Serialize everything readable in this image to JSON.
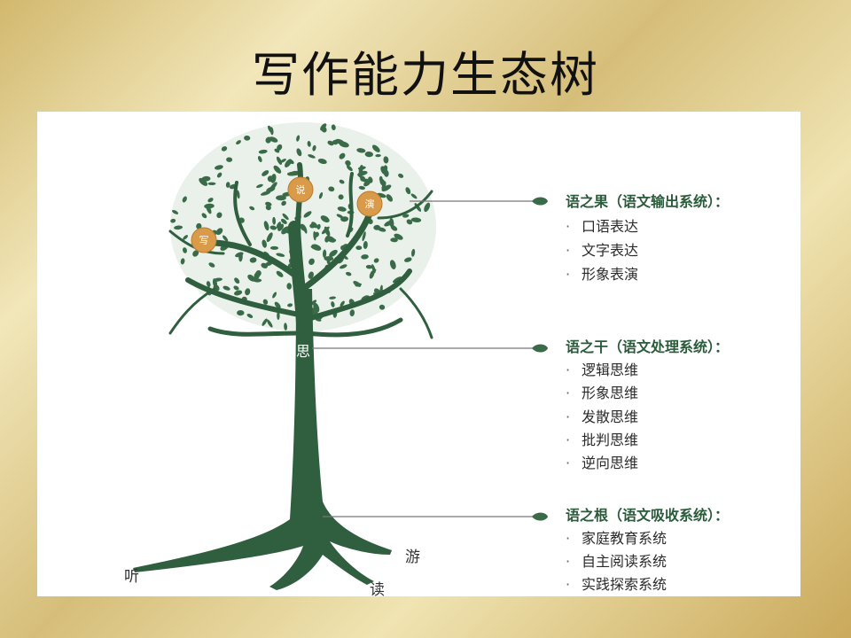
{
  "title": "写作能力生态树",
  "tree": {
    "trunk_label": "思",
    "fruit_labels": [
      "写",
      "说",
      "演"
    ],
    "root_labels": [
      "听",
      "游",
      "读"
    ]
  },
  "sections": [
    {
      "title": "语之果（语文输出系统）：",
      "items": [
        "口语表达",
        "文字表达",
        "形象表演"
      ]
    },
    {
      "title": "语之干（语文处理系统）：",
      "items": [
        "逻辑思维",
        "形象思维",
        "发散思维",
        "批判思维",
        "逆向思维"
      ]
    },
    {
      "title": "语之根（语文吸收系统）：",
      "items": [
        "家庭教育系统",
        "自主阅读系统",
        "实践探索系统"
      ]
    }
  ],
  "colors": {
    "tree": "#2f5f3e",
    "fruit": "#d99a4a",
    "connector": "#777777",
    "leaf": "#3a6b48"
  }
}
